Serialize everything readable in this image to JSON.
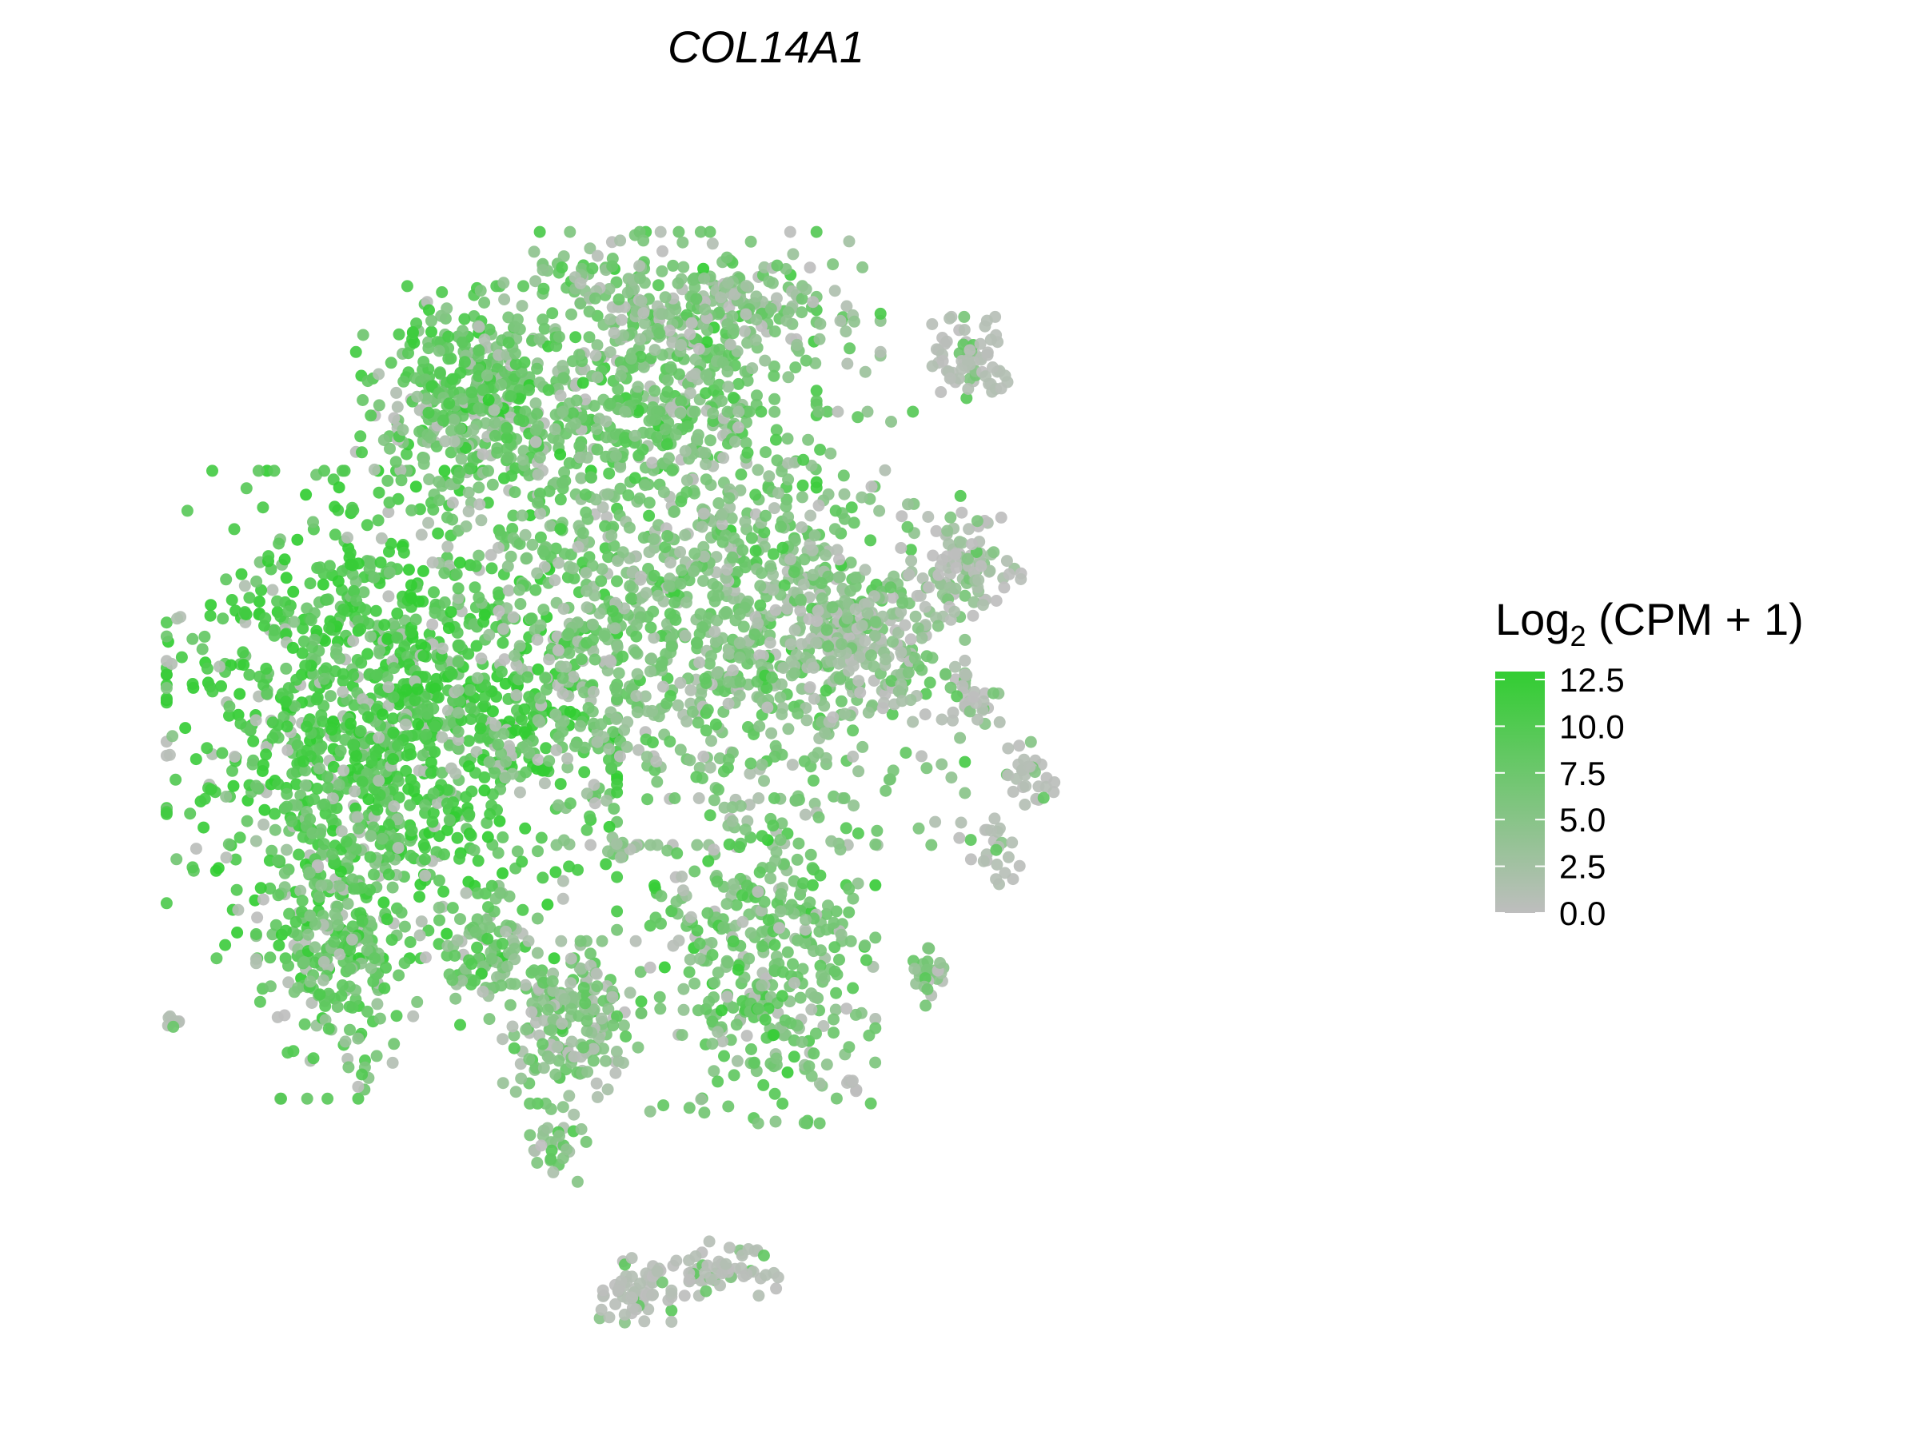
{
  "chart_data": {
    "type": "scatter",
    "title": "COL14A1",
    "xlabel": "",
    "ylabel": "",
    "grid": false,
    "axes_visible": false,
    "legend": {
      "title_main": "Log",
      "title_sub": "2",
      "title_rest": " (CPM + 1)",
      "placement": "right",
      "ticks": [
        "0.0",
        "2.5",
        "5.0",
        "7.5",
        "10.0",
        "12.5"
      ],
      "tick_values": [
        0,
        2.5,
        5,
        7.5,
        10,
        12.5
      ],
      "range": [
        0,
        13
      ],
      "color_low": "#bebebe",
      "color_high": "#32cd32"
    },
    "xlim": [
      0,
      100
    ],
    "ylim": [
      0,
      100
    ],
    "clusters": [
      {
        "x": 20,
        "y": 53,
        "sx": 8,
        "sy": 9,
        "n": 1300,
        "mean": 10.5
      },
      {
        "x": 16,
        "y": 35,
        "sx": 3,
        "sy": 6,
        "n": 300,
        "mean": 8.0
      },
      {
        "x": 27,
        "y": 33,
        "sx": 2,
        "sy": 2.5,
        "n": 90,
        "mean": 7.0
      },
      {
        "x": 34,
        "y": 28,
        "sx": 2.5,
        "sy": 3,
        "n": 200,
        "mean": 5.5
      },
      {
        "x": 33,
        "y": 19,
        "sx": 1,
        "sy": 2,
        "n": 30,
        "mean": 6.0
      },
      {
        "x": 26,
        "y": 79,
        "sx": 4,
        "sy": 4,
        "n": 400,
        "mean": 8.0
      },
      {
        "x": 40,
        "y": 79,
        "sx": 6,
        "sy": 6,
        "n": 500,
        "mean": 7.5
      },
      {
        "x": 45,
        "y": 86,
        "sx": 6,
        "sy": 2.5,
        "n": 220,
        "mean": 5.0
      },
      {
        "x": 45,
        "y": 60,
        "sx": 9,
        "sy": 8,
        "n": 1000,
        "mean": 6.0
      },
      {
        "x": 56,
        "y": 59,
        "sx": 4,
        "sy": 3,
        "n": 250,
        "mean": 3.5
      },
      {
        "x": 49,
        "y": 33,
        "sx": 4,
        "sy": 6,
        "n": 400,
        "mean": 7.0
      },
      {
        "x": 65,
        "y": 82,
        "sx": 1.5,
        "sy": 1.5,
        "n": 70,
        "mean": 0.8
      },
      {
        "x": 65,
        "y": 65,
        "sx": 2,
        "sy": 2,
        "n": 80,
        "mean": 2.0
      },
      {
        "x": 65,
        "y": 54,
        "sx": 1.5,
        "sy": 1,
        "n": 25,
        "mean": 0.5
      },
      {
        "x": 70,
        "y": 48,
        "sx": 1,
        "sy": 1.5,
        "n": 30,
        "mean": 0.5
      },
      {
        "x": 67,
        "y": 42,
        "sx": 1.2,
        "sy": 1.5,
        "n": 25,
        "mean": 0.4
      },
      {
        "x": 62,
        "y": 32,
        "sx": 0.8,
        "sy": 1.2,
        "n": 25,
        "mean": 4.0
      },
      {
        "x": 39,
        "y": 6,
        "sx": 1.3,
        "sy": 1.3,
        "n": 60,
        "mean": 0.5
      },
      {
        "x": 45,
        "y": 8,
        "sx": 2.5,
        "sy": 1,
        "n": 60,
        "mean": 0.6
      },
      {
        "x": 3,
        "y": 28,
        "sx": 0.3,
        "sy": 0.3,
        "n": 8,
        "mean": 0.0
      },
      {
        "x": 56,
        "y": 23,
        "sx": 0.3,
        "sy": 0.3,
        "n": 6,
        "mean": 1.0
      },
      {
        "x": 38,
        "y": 42,
        "sx": 0.7,
        "sy": 0.5,
        "n": 12,
        "mean": 5.0
      }
    ]
  }
}
